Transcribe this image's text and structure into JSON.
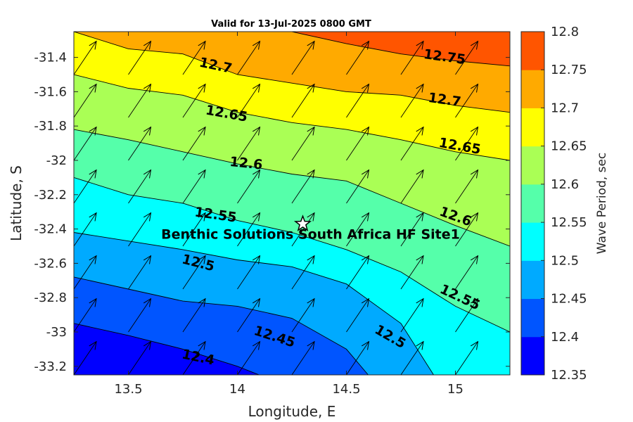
{
  "chart_data": {
    "type": "contour",
    "title": "Valid for 13-Jul-2025 0800 GMT",
    "xlabel": "Longitude, E",
    "ylabel": "Latitude, S",
    "colorbar_label": "Wave Period, sec",
    "xlim": [
      13.25,
      15.25
    ],
    "ylim": [
      -33.25,
      -31.25
    ],
    "xticks": [
      "13.5",
      "14",
      "14.5",
      "15"
    ],
    "yticks": [
      "-31.4",
      "-31.6",
      "-31.8",
      "-32",
      "-32.2",
      "-32.4",
      "-32.6",
      "-32.8",
      "-33",
      "-33.2"
    ],
    "colorbar_ticks": [
      "12.35",
      "12.4",
      "12.45",
      "12.5",
      "12.55",
      "12.6",
      "12.65",
      "12.7",
      "12.75",
      "12.8"
    ],
    "levels": [
      12.35,
      12.4,
      12.45,
      12.5,
      12.55,
      12.6,
      12.65,
      12.7,
      12.75,
      12.8
    ],
    "level_colors": [
      "#0000ff",
      "#0055ff",
      "#00aaff",
      "#00ffff",
      "#55ffaa",
      "#aaff55",
      "#ffff00",
      "#ffaa00",
      "#ff5500"
    ],
    "contours": [
      {
        "level": 12.4,
        "label": "12.4",
        "points": [
          [
            13.25,
            -32.95
          ],
          [
            13.5,
            -33.02
          ],
          [
            13.75,
            -33.1
          ],
          [
            14.0,
            -33.2
          ],
          [
            14.1,
            -33.25
          ]
        ]
      },
      {
        "level": 12.45,
        "label": "12.45",
        "points": [
          [
            13.25,
            -32.68
          ],
          [
            13.5,
            -32.75
          ],
          [
            13.75,
            -32.82
          ],
          [
            14.0,
            -32.85
          ],
          [
            14.25,
            -32.92
          ],
          [
            14.5,
            -33.1
          ],
          [
            14.6,
            -33.25
          ]
        ]
      },
      {
        "level": 12.5,
        "label": "12.5",
        "points": [
          [
            13.25,
            -32.42
          ],
          [
            13.5,
            -32.47
          ],
          [
            13.75,
            -32.52
          ],
          [
            14.0,
            -32.58
          ],
          [
            14.25,
            -32.62
          ],
          [
            14.5,
            -32.72
          ],
          [
            14.75,
            -32.95
          ],
          [
            14.9,
            -33.25
          ]
        ]
      },
      {
        "level": 12.55,
        "label": "12.55",
        "points": [
          [
            13.25,
            -32.1
          ],
          [
            13.5,
            -32.2
          ],
          [
            13.75,
            -32.25
          ],
          [
            14.0,
            -32.35
          ],
          [
            14.25,
            -32.42
          ],
          [
            14.5,
            -32.52
          ],
          [
            14.75,
            -32.65
          ],
          [
            15.0,
            -32.85
          ],
          [
            15.25,
            -33.0
          ]
        ]
      },
      {
        "level": 12.6,
        "label": "12.6",
        "points": [
          [
            13.25,
            -31.82
          ],
          [
            13.5,
            -31.88
          ],
          [
            13.75,
            -31.95
          ],
          [
            14.0,
            -32.02
          ],
          [
            14.25,
            -32.08
          ],
          [
            14.5,
            -32.12
          ],
          [
            14.75,
            -32.25
          ],
          [
            15.0,
            -32.38
          ],
          [
            15.25,
            -32.5
          ]
        ]
      },
      {
        "level": 12.65,
        "label": "12.65",
        "points": [
          [
            13.25,
            -31.5
          ],
          [
            13.5,
            -31.58
          ],
          [
            13.75,
            -31.62
          ],
          [
            14.0,
            -31.72
          ],
          [
            14.25,
            -31.78
          ],
          [
            14.5,
            -31.82
          ],
          [
            14.75,
            -31.88
          ],
          [
            15.0,
            -31.95
          ],
          [
            15.25,
            -32.0
          ]
        ]
      },
      {
        "level": 12.7,
        "label": "12.7",
        "points": [
          [
            13.25,
            -31.25
          ],
          [
            13.5,
            -31.35
          ],
          [
            13.75,
            -31.38
          ],
          [
            14.0,
            -31.5
          ],
          [
            14.25,
            -31.55
          ],
          [
            14.5,
            -31.6
          ],
          [
            14.75,
            -31.62
          ],
          [
            15.0,
            -31.68
          ],
          [
            15.25,
            -31.72
          ]
        ]
      },
      {
        "level": 12.75,
        "label": "12.75",
        "points": [
          [
            14.25,
            -31.25
          ],
          [
            14.5,
            -31.32
          ],
          [
            14.75,
            -31.38
          ],
          [
            15.0,
            -31.42
          ],
          [
            15.25,
            -31.45
          ]
        ]
      }
    ],
    "contour_labels": [
      {
        "text": "12.4",
        "x": 13.82,
        "y": -33.15,
        "angle": 12
      },
      {
        "text": "12.45",
        "x": 14.17,
        "y": -33.03,
        "angle": 18
      },
      {
        "text": "12.5",
        "x": 13.82,
        "y": -32.6,
        "angle": 14
      },
      {
        "text": "12.5",
        "x": 14.7,
        "y": -33.03,
        "angle": 30
      },
      {
        "text": "12.55",
        "x": 13.9,
        "y": -32.32,
        "angle": 8
      },
      {
        "text": "12.55",
        "x": 15.02,
        "y": -32.8,
        "angle": 25
      },
      {
        "text": "12.6",
        "x": 14.04,
        "y": -32.02,
        "angle": 6
      },
      {
        "text": "12.6",
        "x": 15.0,
        "y": -32.33,
        "angle": 20
      },
      {
        "text": "12.65",
        "x": 13.95,
        "y": -31.73,
        "angle": 10
      },
      {
        "text": "12.65",
        "x": 15.02,
        "y": -31.92,
        "angle": 10
      },
      {
        "text": "12.7",
        "x": 13.9,
        "y": -31.45,
        "angle": 12
      },
      {
        "text": "12.7",
        "x": 14.95,
        "y": -31.65,
        "angle": 8
      },
      {
        "text": "12.75",
        "x": 14.95,
        "y": -31.4,
        "angle": 8
      }
    ],
    "vector_field": {
      "description": "wave direction arrows",
      "lon": [
        13.25,
        13.5,
        13.75,
        14.0,
        14.25,
        14.5,
        14.75,
        15.0,
        15.25
      ],
      "lat": [
        -33.25,
        -33.0,
        -32.75,
        -32.5,
        -32.25,
        -32.0,
        -31.75,
        -31.5,
        -31.25
      ],
      "direction_deg_from_north": 28,
      "length": 0.22
    },
    "site": {
      "name": "Benthic Solutions South Africa HF Site1",
      "lon": 14.3,
      "lat": -32.37,
      "marker": "star"
    }
  }
}
